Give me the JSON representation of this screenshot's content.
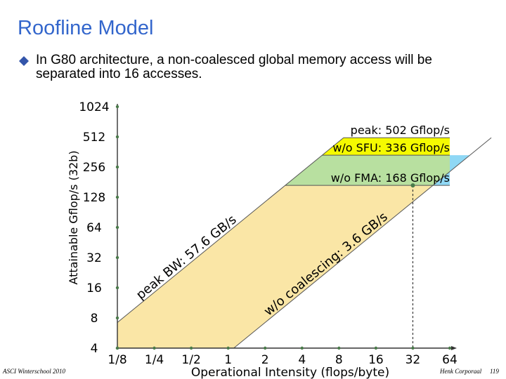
{
  "slide": {
    "title": "Roofline Model",
    "bullet": "In G80 architecture, a non-coalesced global memory access will be separated into 16 accesses.",
    "footer_left": "ASCI Winterschool 2010",
    "footer_right": "Henk Corporaal",
    "page": "119"
  },
  "colors": {
    "title": "#3366cc",
    "bullet": "#3355aa",
    "peak_fill": "#f5fa00",
    "sfu_fill": "#cce8b3",
    "fma_fill": "#b8e0a0",
    "fma_ext_fill": "#8fd8f5",
    "bw_fill": "#fae6a6",
    "axis": "#333333",
    "dots": "#4a7a4a"
  },
  "chart_data": {
    "type": "line",
    "title": "",
    "xlabel": "Operational Intensity (flops/byte)",
    "ylabel": "Attainable Gflop/s (32b)",
    "x_scale": "log2",
    "y_scale": "log2",
    "x_ticks": [
      0.125,
      0.25,
      0.5,
      1,
      2,
      4,
      8,
      16,
      32,
      64
    ],
    "x_tick_labels": [
      "1/8",
      "1/4",
      "1/2",
      "1",
      "2",
      "4",
      "8",
      "16",
      "32",
      "64"
    ],
    "y_ticks": [
      4,
      8,
      16,
      32,
      64,
      128,
      256,
      512,
      1024
    ],
    "y_tick_labels": [
      "4",
      "8",
      "16",
      "32",
      "64",
      "128",
      "256",
      "512",
      "1024"
    ],
    "xlim": [
      0.125,
      64
    ],
    "ylim": [
      4,
      1024
    ],
    "ceilings": [
      {
        "label": "peak: 502 Gflop/s",
        "value": 502
      },
      {
        "label": "w/o SFU: 336 Gflop/s",
        "value": 336
      },
      {
        "label": "w/o FMA: 168 Gflop/s",
        "value": 168
      }
    ],
    "bandwidths": [
      {
        "label": "peak BW: 57.6 GB/s",
        "value": 57.6
      },
      {
        "label": "w/o coalescing: 3.6 GB/s",
        "value": 3.6
      }
    ],
    "ridge_marker_x": 32
  }
}
